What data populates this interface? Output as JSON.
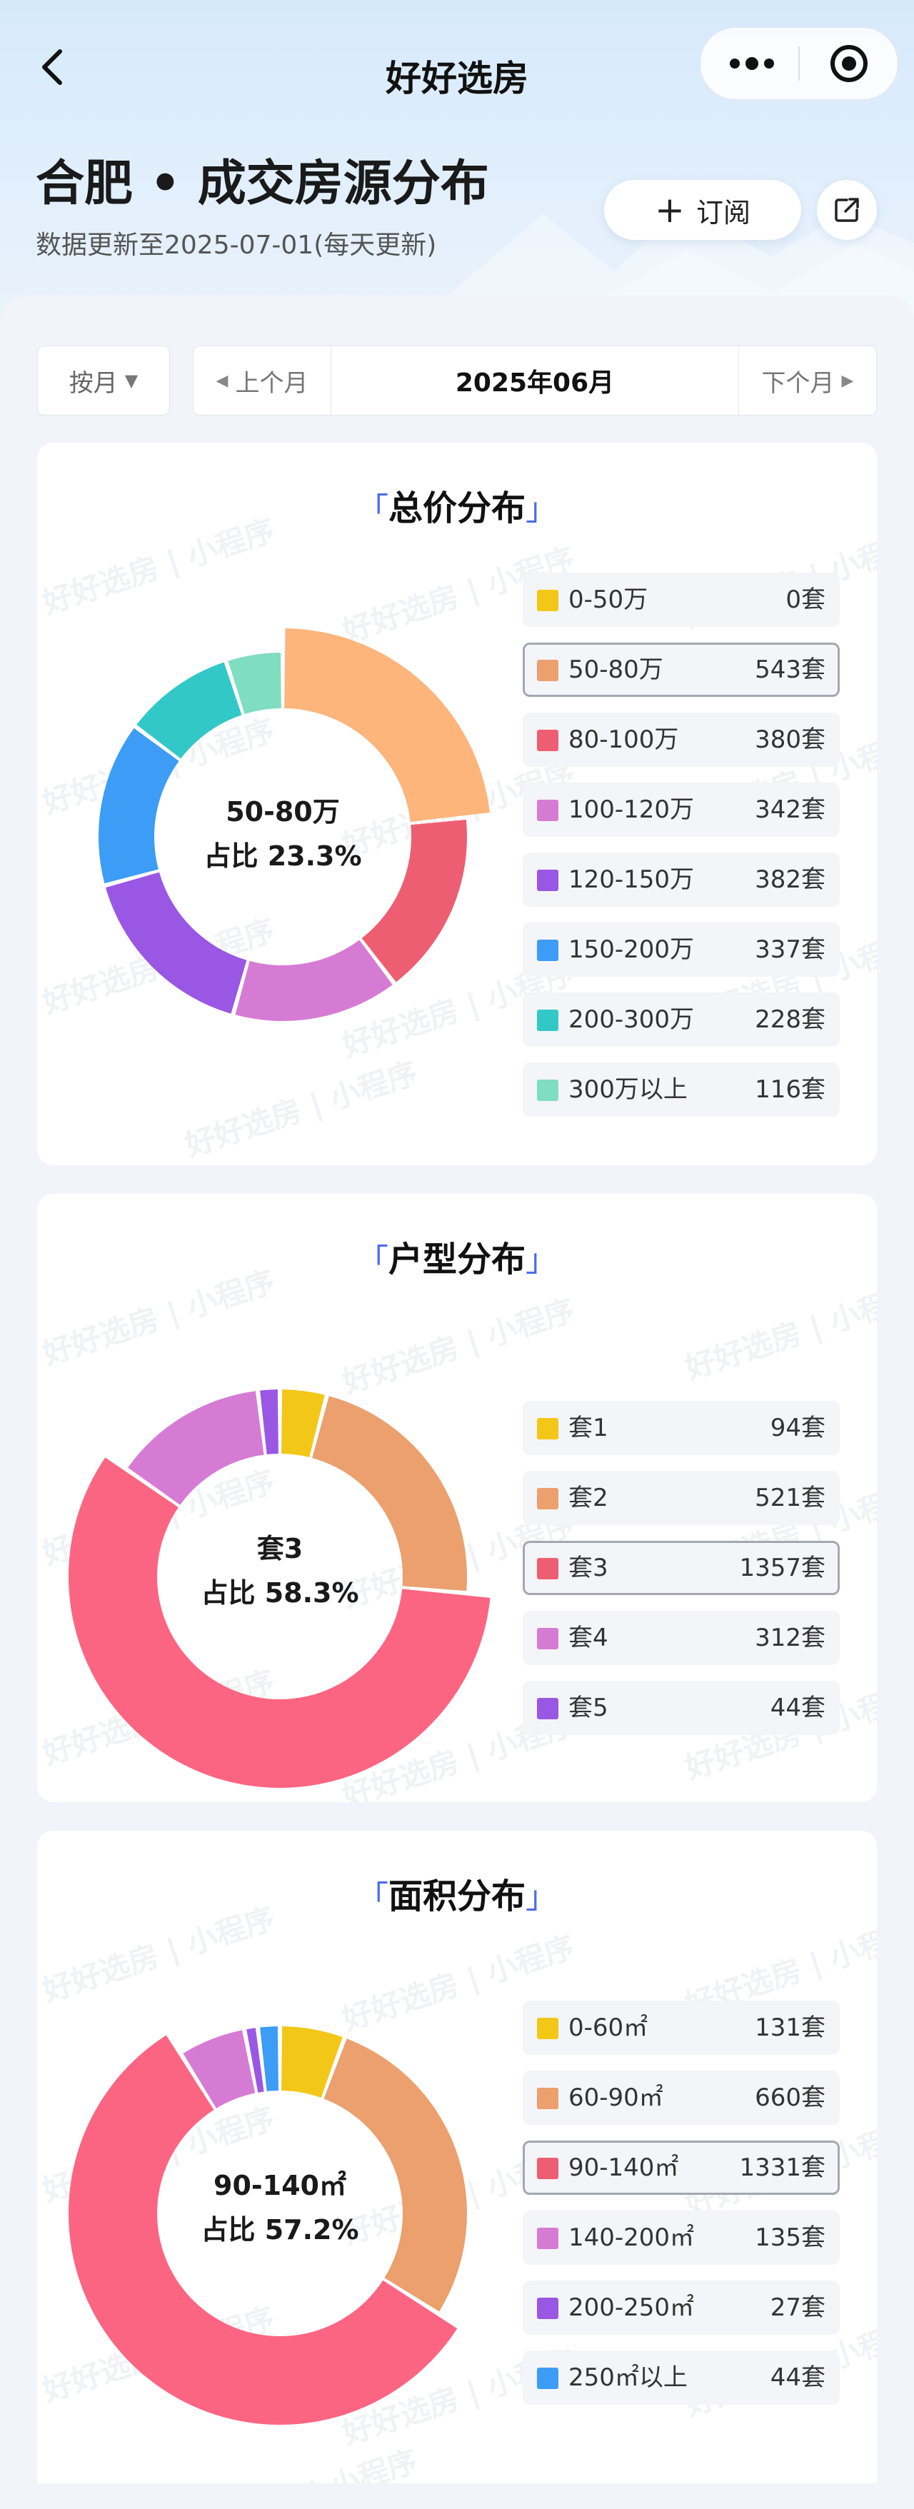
{
  "nav": {
    "title": "好好选房"
  },
  "header": {
    "title": "合肥 • 成交房源分布",
    "update_note": "数据更新至2025-07-01(每天更新)",
    "subscribe_label": "订阅"
  },
  "filter": {
    "mode_label": "按月",
    "prev_label": "上个月",
    "current_month": "2025年06月",
    "next_label": "下个月"
  },
  "watermark": {
    "a": "好好选房",
    "b": "小程序"
  },
  "colors": {
    "yellow": "#F2C718",
    "orange": "#EBA06E",
    "red": "#EE5E72",
    "pink": "#D67BD4",
    "purple": "#9A57E3",
    "blue": "#3C9CF6",
    "teal": "#33C8C8",
    "mint": "#7FDDC0",
    "peach": "#FDB57C",
    "coral": "#FC6582",
    "accent": "#4A6CF0"
  },
  "chart_data": [
    {
      "type": "pie",
      "title": "总价分布",
      "categories": [
        "0-50万",
        "50-80万",
        "80-100万",
        "100-120万",
        "120-150万",
        "150-200万",
        "200-300万",
        "300万以上"
      ],
      "values": [
        0,
        543,
        380,
        342,
        382,
        337,
        228,
        116
      ],
      "unit": "套",
      "selected_index": 1,
      "center": {
        "label": "50-80万",
        "share": "占比 23.3%"
      },
      "colors": [
        "#F2C718",
        "#FDB57C",
        "#EE5E72",
        "#D67BD4",
        "#9A57E3",
        "#3C9CF6",
        "#33C8C8",
        "#7FDDC0"
      ],
      "legend_colors": [
        "#F2C718",
        "#EBA06E",
        "#EE5E72",
        "#D67BD4",
        "#9A57E3",
        "#3C9CF6",
        "#33C8C8",
        "#7FDDC0"
      ],
      "legend_placement": "right"
    },
    {
      "type": "pie",
      "title": "户型分布",
      "categories": [
        "套1",
        "套2",
        "套3",
        "套4",
        "套5"
      ],
      "values": [
        94,
        521,
        1357,
        312,
        44
      ],
      "unit": "套",
      "selected_index": 2,
      "center": {
        "label": "套3",
        "share": "占比 58.3%"
      },
      "colors": [
        "#F2C718",
        "#EBA06E",
        "#FC6582",
        "#D67BD4",
        "#9A57E3"
      ],
      "legend_colors": [
        "#F2C718",
        "#EBA06E",
        "#EE5E72",
        "#D67BD4",
        "#9A57E3"
      ],
      "legend_placement": "right"
    },
    {
      "type": "pie",
      "title": "面积分布",
      "categories": [
        "0-60㎡",
        "60-90㎡",
        "90-140㎡",
        "140-200㎡",
        "200-250㎡",
        "250㎡以上"
      ],
      "values": [
        131,
        660,
        1331,
        135,
        27,
        44
      ],
      "unit": "套",
      "selected_index": 2,
      "center": {
        "label": "90-140㎡",
        "share": "占比 57.2%"
      },
      "colors": [
        "#F2C718",
        "#EBA06E",
        "#FC6582",
        "#D67BD4",
        "#9A57E3",
        "#3C9CF6"
      ],
      "legend_colors": [
        "#F2C718",
        "#EBA06E",
        "#EE5E72",
        "#D67BD4",
        "#9A57E3",
        "#3C9CF6"
      ],
      "legend_placement": "right"
    }
  ]
}
